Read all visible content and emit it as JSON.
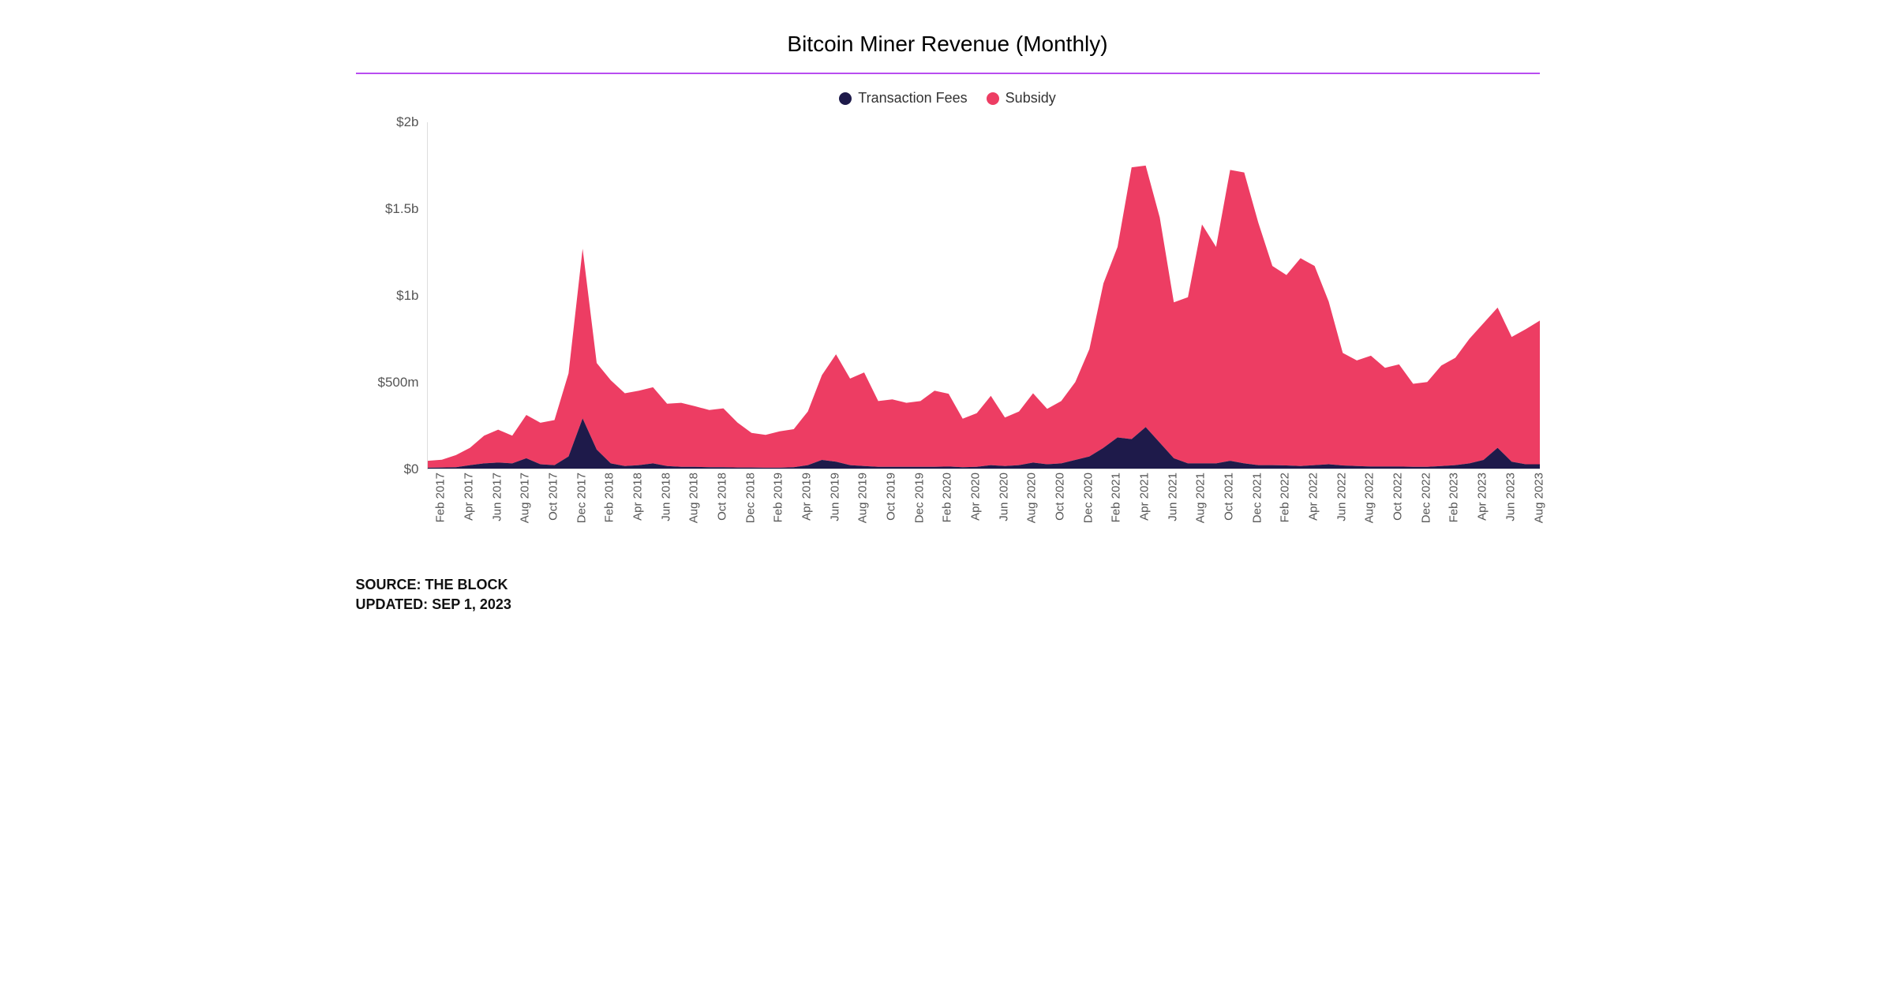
{
  "chart": {
    "type": "area",
    "title": "Bitcoin Miner Revenue (Monthly)",
    "title_fontsize": 28,
    "background_color": "#ffffff",
    "divider_color": "#b84df0",
    "text_color": "#555555",
    "grid_color": "#e5e5e5",
    "legend": {
      "position": "top-center",
      "fontsize": 18,
      "items": [
        {
          "label": "Transaction Fees",
          "color": "#1e1a4a"
        },
        {
          "label": "Subsidy",
          "color": "#ed3d63"
        }
      ]
    },
    "y_axis": {
      "min": 0,
      "max": 2000,
      "unit": "millions_usd",
      "ticks": [
        {
          "value": 0,
          "label": "$0"
        },
        {
          "value": 500,
          "label": "$500m"
        },
        {
          "value": 1000,
          "label": "$1b"
        },
        {
          "value": 1500,
          "label": "$1.5b"
        },
        {
          "value": 2000,
          "label": "$2b"
        }
      ],
      "label_fontsize": 17
    },
    "x_axis": {
      "categories": [
        "Jan 2017",
        "Feb 2017",
        "Mar 2017",
        "Apr 2017",
        "May 2017",
        "Jun 2017",
        "Jul 2017",
        "Aug 2017",
        "Sep 2017",
        "Oct 2017",
        "Nov 2017",
        "Dec 2017",
        "Jan 2018",
        "Feb 2018",
        "Mar 2018",
        "Apr 2018",
        "May 2018",
        "Jun 2018",
        "Jul 2018",
        "Aug 2018",
        "Sep 2018",
        "Oct 2018",
        "Nov 2018",
        "Dec 2018",
        "Jan 2019",
        "Feb 2019",
        "Mar 2019",
        "Apr 2019",
        "May 2019",
        "Jun 2019",
        "Jul 2019",
        "Aug 2019",
        "Sep 2019",
        "Oct 2019",
        "Nov 2019",
        "Dec 2019",
        "Jan 2020",
        "Feb 2020",
        "Mar 2020",
        "Apr 2020",
        "May 2020",
        "Jun 2020",
        "Jul 2020",
        "Aug 2020",
        "Sep 2020",
        "Oct 2020",
        "Nov 2020",
        "Dec 2020",
        "Jan 2021",
        "Feb 2021",
        "Mar 2021",
        "Apr 2021",
        "May 2021",
        "Jun 2021",
        "Jul 2021",
        "Aug 2021",
        "Sep 2021",
        "Oct 2021",
        "Nov 2021",
        "Dec 2021",
        "Jan 2022",
        "Feb 2022",
        "Mar 2022",
        "Apr 2022",
        "May 2022",
        "Jun 2022",
        "Jul 2022",
        "Aug 2022",
        "Sep 2022",
        "Oct 2022",
        "Nov 2022",
        "Dec 2022",
        "Jan 2023",
        "Feb 2023",
        "Mar 2023",
        "Apr 2023",
        "May 2023",
        "Jun 2023",
        "Jul 2023",
        "Aug 2023"
      ],
      "tick_labels": [
        "Feb 2017",
        "Apr 2017",
        "Jun 2017",
        "Aug 2017",
        "Oct 2017",
        "Dec 2017",
        "Feb 2018",
        "Apr 2018",
        "Jun 2018",
        "Aug 2018",
        "Oct 2018",
        "Dec 2018",
        "Feb 2019",
        "Apr 2019",
        "Jun 2019",
        "Aug 2019",
        "Oct 2019",
        "Dec 2019",
        "Feb 2020",
        "Apr 2020",
        "Jun 2020",
        "Aug 2020",
        "Oct 2020",
        "Dec 2020",
        "Feb 2021",
        "Apr 2021",
        "Jun 2021",
        "Aug 2021",
        "Oct 2021",
        "Dec 2021",
        "Feb 2022",
        "Apr 2022",
        "Jun 2022",
        "Aug 2022",
        "Oct 2022",
        "Dec 2022",
        "Feb 2023",
        "Apr 2023",
        "Jun 2023",
        "Aug 2023"
      ],
      "label_rotation": -90,
      "label_fontsize": 15
    },
    "series": [
      {
        "name": "Transaction Fees",
        "color": "#1e1a4a",
        "fill_opacity": 1.0,
        "values_musd": [
          5,
          6,
          8,
          20,
          30,
          35,
          30,
          60,
          25,
          20,
          70,
          290,
          110,
          30,
          15,
          20,
          30,
          15,
          10,
          10,
          8,
          8,
          6,
          6,
          5,
          5,
          8,
          20,
          50,
          40,
          20,
          15,
          10,
          10,
          10,
          10,
          10,
          12,
          8,
          10,
          20,
          15,
          20,
          35,
          25,
          30,
          50,
          70,
          120,
          180,
          170,
          240,
          150,
          60,
          30,
          30,
          30,
          45,
          30,
          20,
          20,
          18,
          15,
          20,
          25,
          18,
          15,
          12,
          12,
          12,
          10,
          10,
          15,
          20,
          30,
          50,
          120,
          40,
          25,
          25
        ]
      },
      {
        "name": "Subsidy",
        "color": "#ed3d63",
        "fill_opacity": 1.0,
        "values_musd": [
          40,
          45,
          70,
          100,
          160,
          190,
          160,
          250,
          240,
          260,
          480,
          980,
          500,
          480,
          420,
          430,
          440,
          360,
          370,
          350,
          330,
          340,
          260,
          200,
          190,
          210,
          220,
          310,
          490,
          620,
          500,
          540,
          380,
          390,
          370,
          380,
          440,
          420,
          280,
          310,
          400,
          280,
          310,
          400,
          320,
          360,
          450,
          620,
          950,
          1100,
          1570,
          1510,
          1300,
          900,
          960,
          1380,
          1250,
          1680,
          1680,
          1400,
          1150,
          1100,
          1200,
          1150,
          940,
          650,
          610,
          640,
          570,
          590,
          480,
          490,
          580,
          620,
          720,
          790,
          810,
          720,
          780,
          830
        ]
      }
    ]
  },
  "footer": {
    "source_label": "SOURCE:",
    "source_value": "THE BLOCK",
    "updated_label": "UPDATED:",
    "updated_value": "SEP 1, 2023",
    "fontsize": 18,
    "font_weight": 700,
    "color": "#111111"
  }
}
